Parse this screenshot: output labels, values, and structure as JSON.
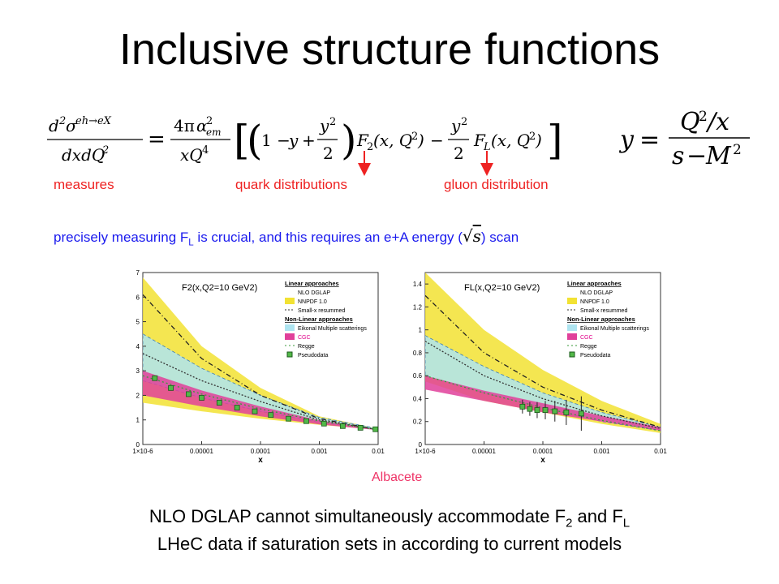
{
  "title": "Inclusive structure functions",
  "labels": {
    "measures": "measures",
    "quark": "quark distributions",
    "gluon": "gluon distribution"
  },
  "note": {
    "pre": "precisely measuring F",
    "sub": "L",
    "mid": " is crucial, and this requires an e+A energy (",
    "post": ") scan"
  },
  "credit": "Albacete",
  "bottom": {
    "line1_pre": "NLO DGLAP cannot simultaneously accommodate F",
    "line1_sub1": "2",
    "line1_mid": " and F",
    "line1_sub2": "L",
    "line2": "LHeC data if saturation sets in according to current models"
  },
  "colors": {
    "red": "#ee2222",
    "blue": "#1a1aee",
    "yellow": "#f2e233",
    "cyan": "#aee4f0",
    "magenta": "#e0409a",
    "green": "#52b848"
  },
  "chart_data": [
    {
      "type": "line",
      "title": "F2(x,Q2=10 GeV2)",
      "xlabel": "x",
      "xscale": "log",
      "xlim": [
        1e-06,
        0.01
      ],
      "ylim": [
        0,
        7
      ],
      "xticks": [
        "1×10-6",
        "0.00001",
        "0.0001",
        "0.001",
        "0.01"
      ],
      "yticks": [
        "0",
        "1",
        "2",
        "3",
        "4",
        "5",
        "6",
        "7"
      ],
      "legend": [
        "Linear approaches",
        "NLO DGLAP",
        "NNPDF 1.0",
        "Small-x resummed",
        "Non-Linear approaches",
        "Eikonal Multiple scatterings",
        "CGC",
        "Regge",
        "Pseudodata"
      ],
      "bands": [
        {
          "name": "NNPDF 1.0",
          "x": [
            1e-06,
            1e-05,
            0.0001,
            0.001,
            0.01
          ],
          "lower": [
            1.7,
            1.35,
            1.05,
            0.8,
            0.6
          ],
          "upper": [
            6.8,
            4.0,
            2.3,
            1.15,
            0.65
          ]
        },
        {
          "name": "Eikonal Multiple scatterings",
          "x": [
            1e-06,
            1e-05,
            0.0001,
            0.001,
            0.01
          ],
          "lower": [
            2.6,
            1.9,
            1.35,
            0.9,
            0.6
          ],
          "upper": [
            4.5,
            3.1,
            2.0,
            1.1,
            0.65
          ]
        },
        {
          "name": "CGC",
          "x": [
            1e-06,
            1e-05,
            0.0001,
            0.001,
            0.01
          ],
          "lower": [
            2.0,
            1.55,
            1.15,
            0.82,
            0.58
          ],
          "upper": [
            3.0,
            2.2,
            1.55,
            0.98,
            0.62
          ]
        }
      ],
      "series": [
        {
          "name": "NLO DGLAP",
          "x": [
            1e-06,
            1e-05,
            0.0001,
            0.001,
            0.01
          ],
          "values": [
            6.1,
            3.5,
            2.0,
            1.05,
            0.6
          ]
        },
        {
          "name": "Small-x resummed",
          "x": [
            1e-06,
            1e-05,
            0.0001,
            0.001,
            0.01
          ],
          "values": [
            3.7,
            2.6,
            1.75,
            1.0,
            0.6
          ]
        },
        {
          "name": "Regge",
          "x": [
            1e-06,
            1e-05,
            0.0001,
            0.001,
            0.01
          ],
          "values": [
            2.8,
            2.05,
            1.45,
            0.95,
            0.6
          ]
        }
      ],
      "pseudodata": {
        "x": [
          1.6e-06,
          3e-06,
          6e-06,
          1e-05,
          2e-05,
          4e-05,
          8e-05,
          0.00015,
          0.0003,
          0.0006,
          0.0012,
          0.0025,
          0.005,
          0.009
        ],
        "y": [
          2.7,
          2.3,
          2.05,
          1.9,
          1.7,
          1.5,
          1.35,
          1.2,
          1.05,
          0.95,
          0.85,
          0.75,
          0.68,
          0.62
        ]
      }
    },
    {
      "type": "line",
      "title": "FL(x,Q2=10 GeV2)",
      "xlabel": "x",
      "xscale": "log",
      "xlim": [
        1e-06,
        0.01
      ],
      "ylim": [
        0,
        1.5
      ],
      "xticks": [
        "1×10-6",
        "0.00001",
        "0.0001",
        "0.001",
        "0.01"
      ],
      "yticks": [
        "0",
        "0.2",
        "0.4",
        "0.6",
        "0.8",
        "1",
        "1.2",
        "1.4"
      ],
      "legend": [
        "Linear approaches",
        "NLO DGLAP",
        "NNPDF 1.0",
        "Small-x resummed",
        "Non-Linear approaches",
        "Eikonal Multiple scatterings",
        "CGC",
        "Regge",
        "Pseudodata"
      ],
      "bands": [
        {
          "name": "NNPDF 1.0",
          "x": [
            1e-06,
            1e-05,
            0.0001,
            0.001,
            0.01
          ],
          "lower": [
            0.55,
            0.38,
            0.28,
            0.18,
            0.1
          ],
          "upper": [
            1.5,
            1.0,
            0.65,
            0.38,
            0.18
          ]
        },
        {
          "name": "Eikonal Multiple scatterings",
          "x": [
            1e-06,
            1e-05,
            0.0001,
            0.001,
            0.01
          ],
          "lower": [
            0.6,
            0.45,
            0.32,
            0.2,
            0.12
          ],
          "upper": [
            0.95,
            0.68,
            0.45,
            0.28,
            0.15
          ]
        },
        {
          "name": "CGC",
          "x": [
            1e-06,
            1e-05,
            0.0001,
            0.001,
            0.01
          ],
          "lower": [
            0.48,
            0.38,
            0.28,
            0.2,
            0.12
          ],
          "upper": [
            0.6,
            0.47,
            0.36,
            0.25,
            0.15
          ]
        }
      ],
      "series": [
        {
          "name": "NLO DGLAP",
          "x": [
            1e-06,
            1e-05,
            0.0001,
            0.001,
            0.01
          ],
          "values": [
            1.3,
            0.8,
            0.5,
            0.3,
            0.15
          ]
        },
        {
          "name": "Small-x resummed",
          "x": [
            1e-06,
            1e-05,
            0.0001,
            0.001,
            0.01
          ],
          "values": [
            0.9,
            0.6,
            0.4,
            0.25,
            0.14
          ]
        },
        {
          "name": "Regge",
          "x": [
            1e-06,
            1e-05,
            0.0001,
            0.001,
            0.01
          ],
          "values": [
            0.6,
            0.45,
            0.32,
            0.21,
            0.12
          ]
        }
      ],
      "pseudodata": {
        "x": [
          4.5e-05,
          6e-05,
          8e-05,
          0.00011,
          0.00016,
          0.00025,
          0.00045
        ],
        "y": [
          0.33,
          0.31,
          0.3,
          0.3,
          0.29,
          0.28,
          0.27
        ],
        "err": [
          0.06,
          0.06,
          0.07,
          0.08,
          0.09,
          0.11,
          0.15
        ]
      }
    }
  ]
}
